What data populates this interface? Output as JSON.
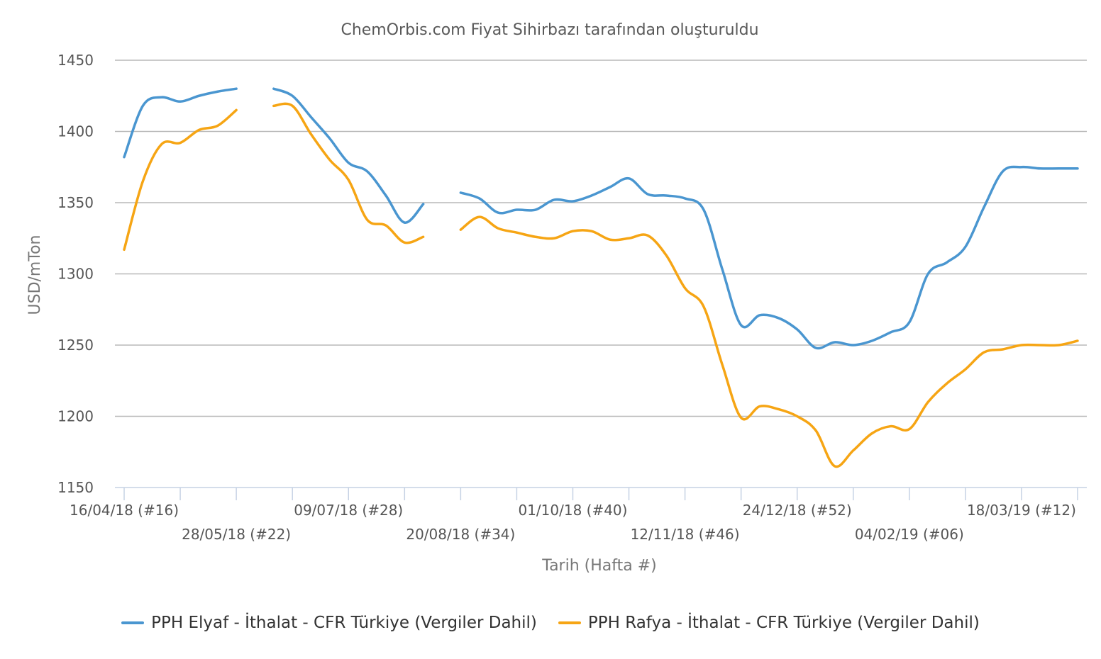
{
  "chart_data": {
    "type": "line",
    "title": "ChemOrbis.com Fiyat Sihirbazı tarafından oluşturuldu",
    "xlabel": "Tarih (Hafta #)",
    "ylabel": "USD/mTon",
    "ylim": [
      1150,
      1450
    ],
    "yticks": [
      1150,
      1200,
      1250,
      1300,
      1350,
      1400,
      1450
    ],
    "x_tick_labels": [
      {
        "week": 0,
        "label": "16/04/18 (#16)"
      },
      {
        "week": 6,
        "label": "28/05/18 (#22)"
      },
      {
        "week": 12,
        "label": "09/07/18 (#28)"
      },
      {
        "week": 18,
        "label": "20/08/18 (#34)"
      },
      {
        "week": 24,
        "label": "01/10/18 (#40)"
      },
      {
        "week": 30,
        "label": "12/11/18 (#46)"
      },
      {
        "week": 36,
        "label": "24/12/18 (#52)"
      },
      {
        "week": 42,
        "label": "04/02/19 (#06)"
      },
      {
        "week": 48,
        "label": "18/03/19 (#12)"
      }
    ],
    "tick_weeks": [
      0,
      3,
      6,
      9,
      12,
      15,
      18,
      21,
      24,
      27,
      30,
      33,
      36,
      39,
      42,
      45,
      48,
      51
    ],
    "x_end_week": 51,
    "grid": true,
    "legend_position": "bottom",
    "series": [
      {
        "name": "PPH Elyaf - İthalat - CFR Türkiye (Vergiler Dahil)",
        "color": "#4a96d0",
        "points": [
          [
            0,
            1382
          ],
          [
            1,
            1418
          ],
          [
            2,
            1424
          ],
          [
            3,
            1421
          ],
          [
            4,
            1425
          ],
          [
            5,
            1428
          ],
          [
            6,
            1430
          ],
          null,
          [
            8,
            1430
          ],
          [
            9,
            1425
          ],
          [
            10,
            1410
          ],
          [
            11,
            1395
          ],
          [
            12,
            1378
          ],
          [
            13,
            1372
          ],
          [
            14,
            1355
          ],
          [
            15,
            1336
          ],
          [
            16,
            1349
          ],
          null,
          [
            18,
            1357
          ],
          [
            19,
            1353
          ],
          [
            20,
            1343
          ],
          [
            21,
            1345
          ],
          [
            22,
            1345
          ],
          [
            23,
            1352
          ],
          [
            24,
            1351
          ],
          [
            25,
            1355
          ],
          [
            26,
            1361
          ],
          [
            27,
            1367
          ],
          [
            28,
            1356
          ],
          [
            29,
            1355
          ],
          [
            30,
            1353
          ],
          [
            31,
            1345
          ],
          [
            32,
            1303
          ],
          [
            33,
            1264
          ],
          [
            34,
            1271
          ],
          [
            35,
            1269
          ],
          [
            36,
            1261
          ],
          [
            37,
            1248
          ],
          [
            38,
            1252
          ],
          [
            39,
            1250
          ],
          [
            40,
            1253
          ],
          [
            41,
            1259
          ],
          [
            42,
            1266
          ],
          [
            43,
            1300
          ],
          [
            44,
            1308
          ],
          [
            45,
            1319
          ],
          [
            46,
            1347
          ],
          [
            47,
            1372
          ],
          [
            48,
            1375
          ],
          [
            49,
            1374
          ],
          [
            50,
            1374
          ],
          [
            51,
            1374
          ]
        ]
      },
      {
        "name": "PPH Rafya - İthalat - CFR Türkiye (Vergiler Dahil)",
        "color": "#f6a514",
        "points": [
          [
            0,
            1317
          ],
          [
            1,
            1365
          ],
          [
            2,
            1391
          ],
          [
            3,
            1392
          ],
          [
            4,
            1401
          ],
          [
            5,
            1404
          ],
          [
            6,
            1415
          ],
          null,
          [
            8,
            1418
          ],
          [
            9,
            1418
          ],
          [
            10,
            1398
          ],
          [
            11,
            1380
          ],
          [
            12,
            1366
          ],
          [
            13,
            1338
          ],
          [
            14,
            1334
          ],
          [
            15,
            1322
          ],
          [
            16,
            1326
          ],
          null,
          [
            18,
            1331
          ],
          [
            19,
            1340
          ],
          [
            20,
            1332
          ],
          [
            21,
            1329
          ],
          [
            22,
            1326
          ],
          [
            23,
            1325
          ],
          [
            24,
            1330
          ],
          [
            25,
            1330
          ],
          [
            26,
            1324
          ],
          [
            27,
            1325
          ],
          [
            28,
            1327
          ],
          [
            29,
            1313
          ],
          [
            30,
            1290
          ],
          [
            31,
            1277
          ],
          [
            32,
            1236
          ],
          [
            33,
            1199
          ],
          [
            34,
            1207
          ],
          [
            35,
            1205
          ],
          [
            36,
            1200
          ],
          [
            37,
            1190
          ],
          [
            38,
            1165
          ],
          [
            39,
            1176
          ],
          [
            40,
            1188
          ],
          [
            41,
            1193
          ],
          [
            42,
            1191
          ],
          [
            43,
            1210
          ],
          [
            44,
            1223
          ],
          [
            45,
            1233
          ],
          [
            46,
            1245
          ],
          [
            47,
            1247
          ],
          [
            48,
            1250
          ],
          [
            49,
            1250
          ],
          [
            50,
            1250
          ],
          [
            51,
            1253
          ]
        ]
      }
    ]
  }
}
